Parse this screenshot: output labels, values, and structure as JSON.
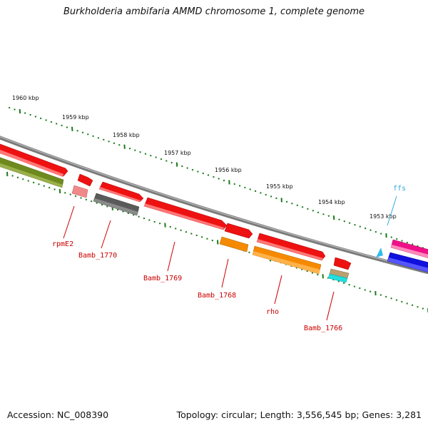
{
  "title": "Burkholderia ambifaria AMMD chromosome 1, complete genome",
  "footer": {
    "accession": "Accession: NC_008390",
    "topology": "Topology: circular; Length: 3,556,545 bp; Genes: 3,281"
  },
  "scale_labels": [
    "1960 kbp",
    "1959 kbp",
    "1958 kbp",
    "1957 kbp",
    "1956 kbp",
    "1955 kbp",
    "1954 kbp",
    "1953 kbp"
  ],
  "gene_labels": [
    {
      "id": "rpmE2",
      "text": "rpmE2",
      "color": "#cc0000"
    },
    {
      "id": "bamb-1770",
      "text": "Bamb_1770",
      "color": "#cc0000"
    },
    {
      "id": "bamb-1769",
      "text": "Bamb_1769",
      "color": "#cc0000"
    },
    {
      "id": "bamb-1768",
      "text": "Bamb_1768",
      "color": "#cc0000"
    },
    {
      "id": "rho",
      "text": "rho",
      "color": "#cc0000"
    },
    {
      "id": "bamb-1766",
      "text": "Bamb_1766",
      "color": "#cc0000"
    },
    {
      "id": "ffs",
      "text": "ffs",
      "color": "#33aadd"
    }
  ],
  "colors": {
    "backbone": "#7a7a7a",
    "tick": "#1a7a1a",
    "red": "#ee1111",
    "olive": "#6e8a1e",
    "gray": "#5a5a5a",
    "pink": "#f08a8a",
    "orange": "#f58a00",
    "cyan": "#22dddd",
    "tan": "#b8a070",
    "magenta": "#ee1188",
    "blue": "#1010dd",
    "light-blue": "#33bbee"
  }
}
